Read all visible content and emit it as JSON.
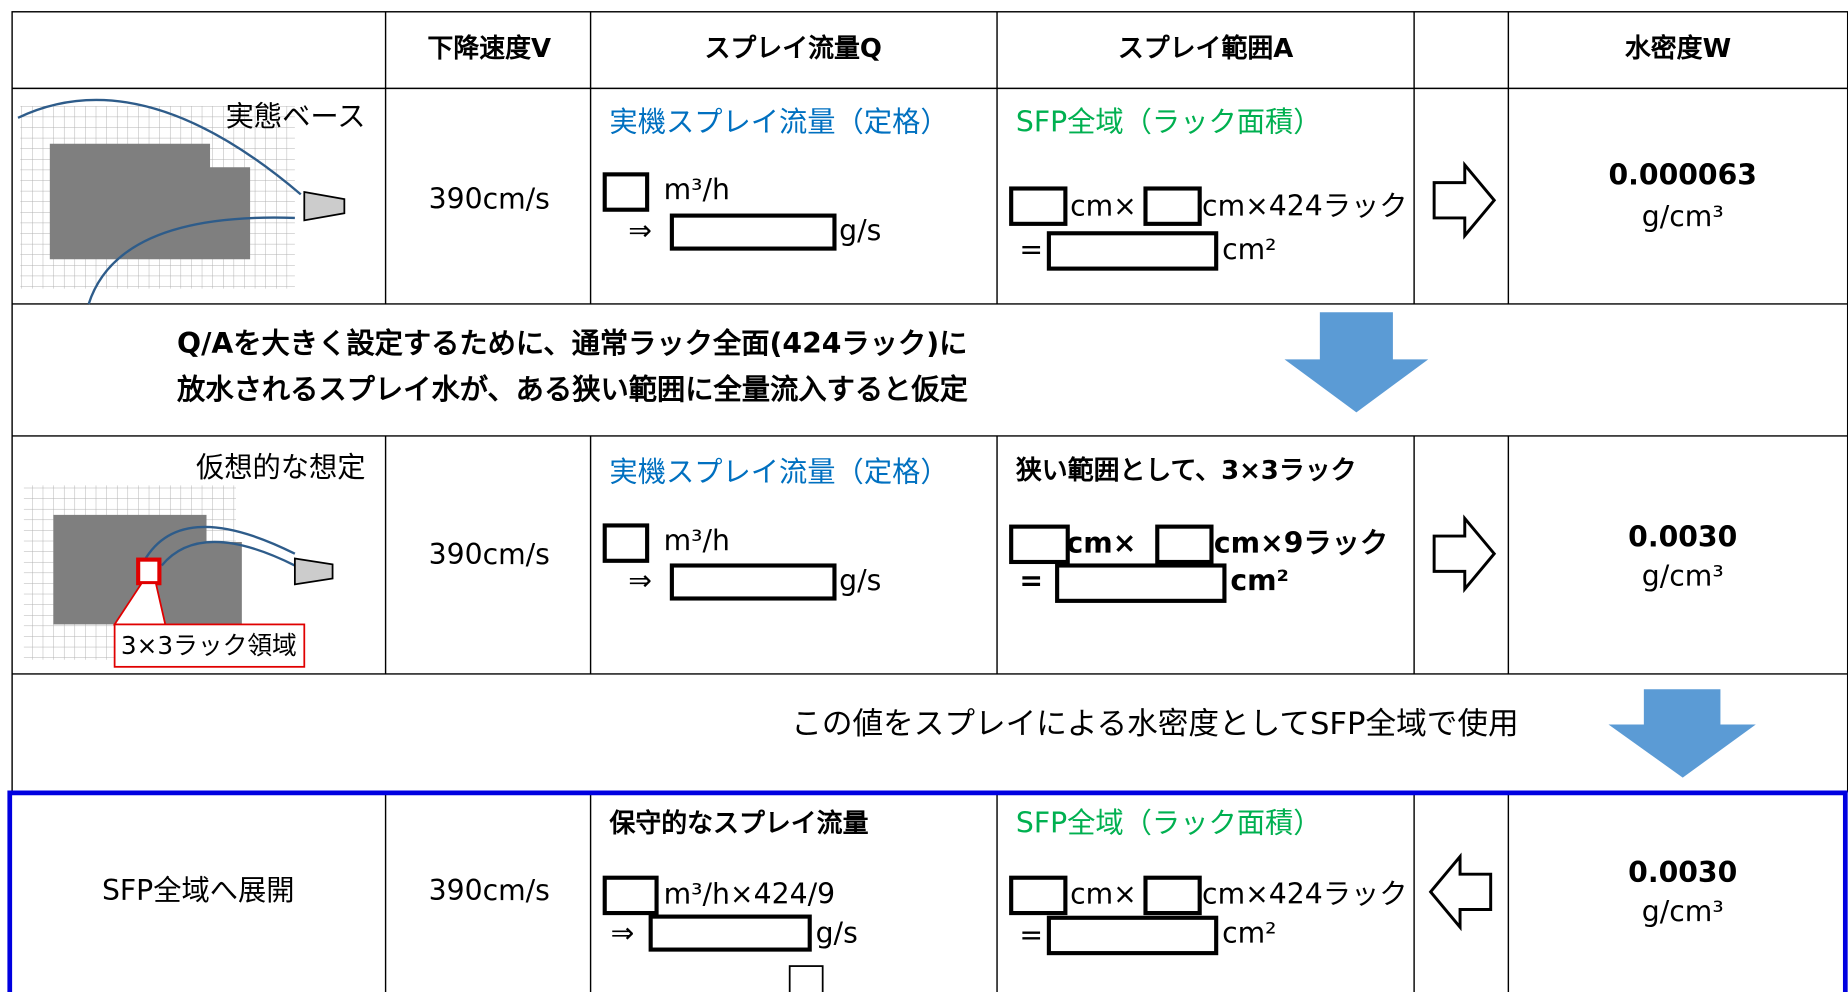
{
  "table": {
    "header": [
      "下降速度V",
      "スプレイ流量Q",
      "スプレイ範囲A",
      "水密度W"
    ],
    "rows": [
      {
        "label": "実態ベース",
        "velocity": "390cm/s",
        "flow_title": "実機スプレイ流量（定格）",
        "flow_unit": "m³/h",
        "flow_arrow": "⇒",
        "flow_result_unit": "g/s",
        "area_title": "SFP全域（ラック面積）",
        "area_unit1": "cm×",
        "area_unit2": "cm×424ラック",
        "area_eq": "=",
        "area_result_unit": "cm²",
        "density": "0.000063",
        "density_unit": "g/cm³"
      },
      {
        "label": "仮想的な想定",
        "callout": "3×3ラック領域",
        "velocity": "390cm/s",
        "flow_title": "実機スプレイ流量（定格）",
        "flow_unit": "m³/h",
        "flow_arrow": "⇒",
        "flow_result_unit": "g/s",
        "area_title": "狭い範囲として、3×3ラック",
        "area_unit1": "cm×",
        "area_unit2": "cm×9ラック",
        "area_eq": "=",
        "area_result_unit": "cm²",
        "density": "0.0030",
        "density_unit": "g/cm³"
      },
      {
        "label": "SFP全域へ展開",
        "velocity": "390cm/s",
        "flow_title": "保守的なスプレイ流量",
        "flow_unit": "m³/h×424/9",
        "flow_arrow": "⇒",
        "flow_result_unit": "g/s",
        "area_title": "SFP全域（ラック面積）",
        "area_unit1": "cm×",
        "area_unit2": "cm×424ラック",
        "area_eq": "=",
        "area_result_unit": "cm²",
        "density": "0.0030",
        "density_unit": "g/cm³"
      }
    ],
    "notes": [
      "Q/Aを大きく設定するために、通常ラック全面(424ラック)に",
      "放水されるスプレイ水が、ある狭い範囲に全量流入すると仮定",
      "この値をスプレイによる水密度としてSFP全域で使用"
    ]
  }
}
